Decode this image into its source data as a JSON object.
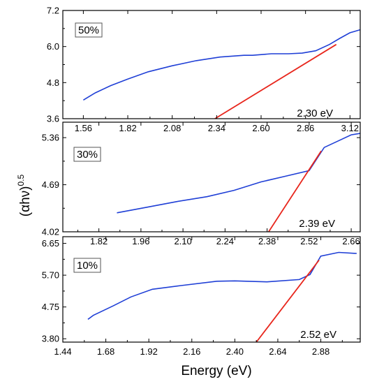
{
  "figure": {
    "xlabel": "Energy (eV)",
    "ylabel_base": "(αhν)",
    "ylabel_exponent": "0.5"
  },
  "chart_data": [
    {
      "type": "line",
      "panel_label": "50%",
      "annotation": "2.30 eV",
      "xlim": [
        1.44,
        3.18
      ],
      "ylim": [
        3.6,
        7.2
      ],
      "xticks": [
        "1.56",
        "1.82",
        "2.08",
        "2.34",
        "2.60",
        "2.86",
        "3.12"
      ],
      "yticks": [
        "3.6",
        "4.8",
        "6.0",
        "7.2"
      ],
      "series": [
        {
          "color": "#1f3fd6",
          "x": [
            1.56,
            1.63,
            1.72,
            1.82,
            1.94,
            2.08,
            2.22,
            2.36,
            2.5,
            2.55,
            2.66,
            2.76,
            2.84,
            2.92,
            3.0,
            3.06,
            3.12,
            3.18
          ],
          "y": [
            4.22,
            4.46,
            4.7,
            4.92,
            5.16,
            5.36,
            5.53,
            5.65,
            5.71,
            5.71,
            5.76,
            5.76,
            5.78,
            5.86,
            6.07,
            6.27,
            6.46,
            6.56
          ]
        },
        {
          "color": "#e8261c",
          "x": [
            2.33,
            3.04
          ],
          "y": [
            3.6,
            6.07
          ]
        }
      ]
    },
    {
      "type": "line",
      "panel_label": "30%",
      "annotation": "2.39 eV",
      "xlim": [
        1.7,
        2.69
      ],
      "ylim": [
        4.02,
        5.58
      ],
      "xticks": [
        "1.82",
        "1.96",
        "2.10",
        "2.24",
        "2.38",
        "2.52",
        "2.66"
      ],
      "yticks": [
        "4.02",
        "4.69",
        "5.36"
      ],
      "series": [
        {
          "color": "#1f3fd6",
          "x": [
            1.88,
            1.98,
            2.08,
            2.18,
            2.27,
            2.36,
            2.44,
            2.52,
            2.57,
            2.62,
            2.66,
            2.69
          ],
          "y": [
            4.29,
            4.37,
            4.45,
            4.52,
            4.61,
            4.73,
            4.81,
            4.89,
            5.22,
            5.32,
            5.4,
            5.42
          ]
        },
        {
          "color": "#e8261c",
          "x": [
            2.385,
            2.56
          ],
          "y": [
            4.02,
            5.17
          ]
        }
      ]
    },
    {
      "type": "line",
      "panel_label": "10%",
      "annotation": "2.52 eV",
      "xlim": [
        1.44,
        3.1
      ],
      "ylim": [
        3.7,
        6.85
      ],
      "xticks": [
        "1.44",
        "1.68",
        "1.92",
        "2.16",
        "2.40",
        "2.64",
        "2.88"
      ],
      "yticks": [
        "3.80",
        "4.75",
        "5.70",
        "6.65"
      ],
      "series": [
        {
          "color": "#1f3fd6",
          "x": [
            1.58,
            1.61,
            1.72,
            1.82,
            1.94,
            2.1,
            2.3,
            2.4,
            2.58,
            2.76,
            2.82,
            2.88,
            2.98,
            3.08
          ],
          "y": [
            4.38,
            4.5,
            4.78,
            5.05,
            5.28,
            5.39,
            5.52,
            5.53,
            5.5,
            5.57,
            5.72,
            6.27,
            6.38,
            6.35
          ]
        },
        {
          "color": "#e8261c",
          "x": [
            2.52,
            2.87
          ],
          "y": [
            3.7,
            6.15
          ]
        }
      ]
    }
  ]
}
